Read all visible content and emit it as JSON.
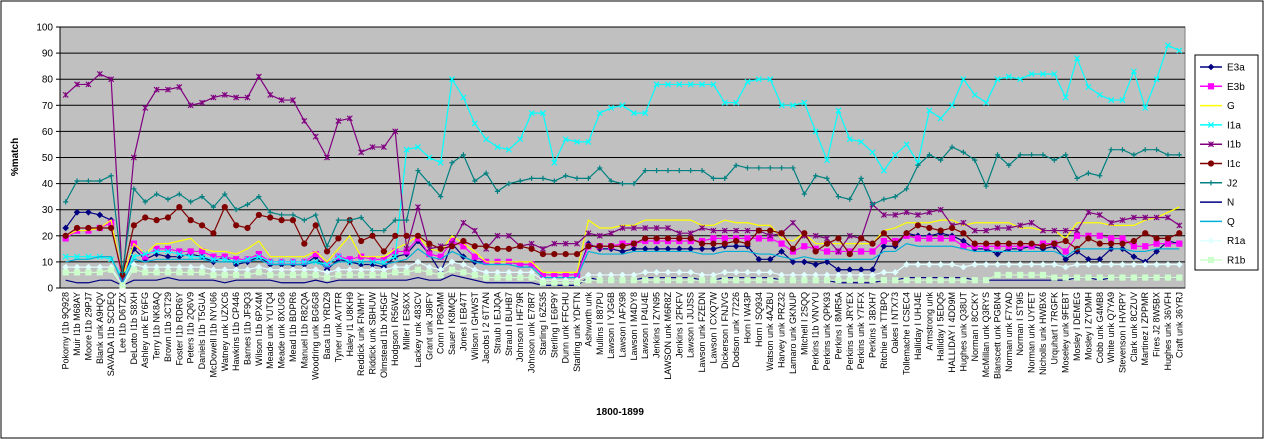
{
  "chart_data": {
    "type": "line",
    "y_label": "%match",
    "x_label": "1800-1899",
    "ylim": [
      0,
      100
    ],
    "yticks": [
      0,
      10,
      20,
      30,
      40,
      50,
      60,
      70,
      80,
      90,
      100
    ],
    "grid": true,
    "legend": "right",
    "categories": [
      "Pokorny I1b 9Q928",
      "Muir I1b M68AY",
      "Moore I1b 29PJ7",
      "Blank unk A9HQV",
      "SAVADA I1b SCDEQ",
      "Lee I1b D6TZX",
      "DeLotto I1b S8XH",
      "Ashley unk EY6FG",
      "Terry I1b NK8AQ",
      "Brown I1b 3CT29",
      "Foster I1b RDR6Y",
      "Peters I1b 2Q6V9",
      "Daniels I1b T5GUA",
      "McDowell I1b NYU66",
      "Watney unk UZXC6",
      "Hawkins I1b CP446",
      "Barnes I1b JF9Q3",
      "Wilson I1b 6PX4M",
      "Meade unk YUTQ4",
      "Meade unk 8XUG6",
      "Mead I1b BDPR6",
      "Manuel I1b R82QA",
      "Woodring unk BG6G8",
      "Baca I1b YRDZ9",
      "Tyner unk AVTFR",
      "Haley I1 U8KH9",
      "Reddick unk FNMHY",
      "Riddick unk SBHUW",
      "Olmstead I1b XH5GF",
      "Hodgson I R56WZ",
      "Miller I ES6XX",
      "Lackey unk 483CV",
      "Grant unk J98FY",
      "Conn I P8GMM",
      "Sauer I K8MQE",
      "Jones I EB47T",
      "Wilson I GHWST",
      "Jacobs I 2 6T7AN",
      "Straub I EJJQA",
      "Straub I BUHB7",
      "Johnson I HF79R",
      "Johnson unk E78R7",
      "Starling I 6Z535",
      "Sterling I E6P9Y",
      "Dunn unk FFCHU",
      "Starling unk YDFTN",
      "Ashworth unk",
      "Mullins I 887PU",
      "Lawson I YJG6B",
      "Lawson I AFX98",
      "Lawson I M4DY8",
      "Lawson I P4U4E",
      "Jenkins I ZYN95",
      "LAWSON unk M6R8Z",
      "Jenkins I 2FKFV",
      "Lawson I JUJSS",
      "Lawson unk FZEDN",
      "Lawson I CXQ7W",
      "Dickerson I FNJVG",
      "Dodson unk 77226",
      "Horn I W43P",
      "Horn I SQ934",
      "Watson unk 4AZBU",
      "Harvey unk PRZ32",
      "Lamaro unk GKNUP",
      "Mitchell I 2SQQ",
      "Perkins I1b VNVYU",
      "Perkins unk QPK93",
      "Perkins I 8MR5A",
      "Perkins unk JRYEX",
      "Perkins unk Y7FFX",
      "Perkins I 3BXH7",
      "Ritchie unk TTBPQ",
      "Oakes I NTX73",
      "Tollemache I CSEC4",
      "Halliday I UHJ4E",
      "Armstrong unk",
      "Halliday I 5EDQ5",
      "HALLIDAY I 4DD9M",
      "Hughes unk Q38UT",
      "Norman I 8CCKY",
      "McMillan unk Q3RYS",
      "Blanscett unk PGBN4",
      "Norman unk F7YAD",
      "Norman I ST9I5",
      "Norman unk UYFET",
      "Nicholls unk HWBX6",
      "Urquhart I 7RGFK",
      "Moseley unk 9FEBT",
      "Mosley I DEMEG",
      "Mosley I ZYDMH",
      "Cobb unk G4MB8",
      "White unk Q7YA9",
      "Stevenson I HVRPY",
      "Clark unk 8CZUV",
      "Martinez I ZPPMR",
      "Fires J2 8W5BX",
      "Hughes unk 36VFH",
      "Craft unk 36YRJ"
    ],
    "series": [
      {
        "name": "E3a",
        "color": "#000080",
        "marker": "diamond",
        "values": [
          23,
          29,
          29,
          28,
          26,
          3,
          15,
          11,
          13,
          12,
          12,
          13,
          12,
          10,
          12,
          9,
          10,
          12,
          9,
          9,
          9,
          9,
          12,
          7,
          11,
          10,
          9,
          9,
          8,
          12,
          13,
          18,
          13,
          6,
          17,
          12,
          10,
          10,
          10,
          10,
          9,
          9,
          5,
          5,
          5,
          5,
          17,
          15,
          15,
          14,
          15,
          15,
          15,
          15,
          15,
          15,
          15,
          15,
          16,
          16,
          16,
          11,
          11,
          14,
          10,
          10,
          9,
          10,
          7,
          7,
          7,
          7,
          16,
          16,
          21,
          20,
          20,
          21,
          20,
          18,
          15,
          15,
          13,
          15,
          15,
          16,
          15,
          16,
          11,
          14,
          11,
          11,
          15,
          15,
          12,
          10,
          14,
          18,
          17
        ]
      },
      {
        "name": "E3b",
        "color": "#ff00ff",
        "marker": "square",
        "values": [
          19,
          22,
          22,
          23,
          25,
          3,
          17,
          12,
          15,
          15,
          14,
          14,
          14,
          12,
          12,
          11,
          11,
          13,
          10,
          10,
          10,
          10,
          13,
          9,
          12,
          11,
          12,
          11,
          11,
          14,
          14,
          19,
          13,
          12,
          18,
          16,
          12,
          10,
          10,
          10,
          9,
          9,
          5,
          5,
          5,
          5,
          16,
          16,
          16,
          17,
          17,
          18,
          18,
          18,
          18,
          18,
          18,
          19,
          19,
          19,
          19,
          19,
          19,
          17,
          14,
          16,
          15,
          14,
          14,
          14,
          14,
          14,
          18,
          18,
          20,
          19,
          19,
          19,
          19,
          16,
          16,
          16,
          16,
          16,
          16,
          16,
          17,
          17,
          14,
          20,
          20,
          20,
          19,
          19,
          16,
          16,
          17,
          17,
          17
        ]
      },
      {
        "name": "G",
        "color": "#ffff00",
        "marker": "none",
        "values": [
          20,
          22,
          22,
          23,
          26,
          4,
          17,
          13,
          17,
          17,
          18,
          19,
          15,
          14,
          14,
          13,
          15,
          18,
          12,
          12,
          12,
          12,
          14,
          10,
          15,
          20,
          12,
          12,
          12,
          15,
          17,
          20,
          15,
          14,
          20,
          17,
          14,
          10,
          10,
          10,
          10,
          10,
          6,
          6,
          6,
          6,
          26,
          23,
          23,
          24,
          24,
          26,
          26,
          26,
          26,
          26,
          24,
          24,
          26,
          25,
          25,
          24,
          24,
          19,
          18,
          21,
          17,
          17,
          17,
          17,
          17,
          17,
          22,
          23,
          25,
          25,
          25,
          26,
          26,
          24,
          25,
          25,
          25,
          25,
          23,
          23,
          22,
          22,
          19,
          25,
          25,
          25,
          24,
          24,
          24,
          26,
          27,
          29,
          31
        ]
      },
      {
        "name": "I1a",
        "color": "#00ffff",
        "marker": "x",
        "values": [
          12,
          12,
          12,
          12,
          11,
          4,
          12,
          13,
          14,
          14,
          13,
          12,
          12,
          11,
          11,
          10,
          11,
          12,
          10,
          10,
          10,
          10,
          10,
          9,
          12,
          10,
          10,
          10,
          10,
          12,
          53,
          54,
          50,
          48,
          80,
          73,
          63,
          57,
          54,
          53,
          57,
          67,
          67,
          48,
          57,
          56,
          56,
          67,
          69,
          70,
          67,
          67,
          78,
          78,
          78,
          78,
          78,
          78,
          71,
          71,
          79,
          80,
          80,
          70,
          70,
          71,
          60,
          49,
          68,
          57,
          56,
          52,
          45,
          51,
          55,
          48,
          68,
          65,
          70,
          80,
          74,
          71,
          80,
          81,
          80,
          82,
          82,
          82,
          73,
          88,
          77,
          74,
          72,
          72,
          83,
          69,
          80,
          93,
          91
        ]
      },
      {
        "name": "I1b",
        "color": "#800080",
        "marker": "star",
        "values": [
          74,
          78,
          78,
          82,
          80,
          3,
          50,
          69,
          76,
          76,
          77,
          70,
          71,
          73,
          74,
          73,
          73,
          81,
          74,
          72,
          72,
          64,
          58,
          50,
          64,
          65,
          52,
          54,
          54,
          60,
          15,
          31,
          15,
          16,
          17,
          25,
          22,
          15,
          20,
          20,
          16,
          17,
          15,
          17,
          17,
          17,
          21,
          20,
          21,
          23,
          23,
          23,
          23,
          23,
          21,
          21,
          23,
          22,
          22,
          22,
          22,
          22,
          20,
          21,
          25,
          20,
          20,
          19,
          14,
          20,
          19,
          32,
          28,
          28,
          29,
          28,
          29,
          30,
          24,
          25,
          22,
          22,
          23,
          23,
          24,
          25,
          22,
          22,
          22,
          22,
          29,
          28,
          25,
          26,
          27,
          27,
          27,
          27,
          24
        ]
      },
      {
        "name": "I1c",
        "color": "#800000",
        "marker": "circle",
        "values": [
          20,
          23,
          23,
          23,
          23,
          5,
          24,
          27,
          26,
          27,
          31,
          26,
          24,
          21,
          31,
          24,
          23,
          28,
          27,
          26,
          26,
          17,
          24,
          14,
          19,
          26,
          18,
          20,
          14,
          20,
          20,
          20,
          17,
          15,
          16,
          18,
          16,
          16,
          15,
          15,
          16,
          15,
          13,
          13,
          13,
          13,
          16,
          16,
          16,
          16,
          17,
          19,
          19,
          19,
          19,
          19,
          17,
          17,
          17,
          18,
          17,
          22,
          22,
          21,
          15,
          21,
          14,
          17,
          19,
          13,
          19,
          17,
          21,
          17,
          21,
          24,
          23,
          22,
          23,
          21,
          17,
          17,
          17,
          17,
          17,
          17,
          16,
          17,
          18,
          15,
          19,
          17,
          17,
          17,
          18,
          21,
          19,
          19,
          21
        ]
      },
      {
        "name": "J2",
        "color": "#008080",
        "marker": "plus",
        "values": [
          33,
          41,
          41,
          41,
          43,
          6,
          38,
          33,
          36,
          34,
          36,
          33,
          35,
          31,
          36,
          30,
          32,
          35,
          29,
          28,
          28,
          26,
          28,
          16,
          26,
          26,
          27,
          22,
          22,
          26,
          26,
          45,
          40,
          35,
          48,
          51,
          41,
          44,
          37,
          40,
          41,
          42,
          42,
          41,
          43,
          42,
          42,
          46,
          41,
          40,
          40,
          45,
          45,
          45,
          45,
          45,
          45,
          42,
          42,
          47,
          46,
          46,
          46,
          46,
          46,
          36,
          43,
          42,
          35,
          34,
          42,
          32,
          34,
          35,
          38,
          47,
          51,
          49,
          54,
          52,
          49,
          39,
          51,
          47,
          51,
          51,
          51,
          49,
          51,
          42,
          44,
          43,
          53,
          53,
          51,
          53,
          53,
          51,
          51
        ]
      },
      {
        "name": "N",
        "color": "#000080",
        "marker": "none",
        "values": [
          3,
          2,
          2,
          3,
          3,
          1,
          3,
          3,
          3,
          4,
          3,
          3,
          3,
          3,
          2,
          3,
          3,
          3,
          3,
          2,
          2,
          2,
          3,
          2,
          3,
          3,
          3,
          3,
          3,
          3,
          3,
          4,
          3,
          3,
          5,
          4,
          3,
          2,
          2,
          2,
          2,
          2,
          1,
          1,
          1,
          1,
          4,
          3,
          3,
          3,
          3,
          4,
          4,
          4,
          4,
          4,
          3,
          3,
          4,
          4,
          4,
          4,
          4,
          3,
          3,
          3,
          3,
          3,
          2,
          2,
          2,
          2,
          3,
          3,
          4,
          4,
          4,
          4,
          4,
          4,
          3,
          3,
          3,
          3,
          3,
          3,
          3,
          3,
          3,
          4,
          4,
          3,
          4,
          4,
          4,
          4,
          4,
          4,
          4
        ]
      },
      {
        "name": "Q",
        "color": "#00b0d8",
        "marker": "none",
        "values": [
          10,
          11,
          11,
          12,
          12,
          2,
          11,
          10,
          11,
          11,
          11,
          11,
          11,
          10,
          10,
          10,
          10,
          11,
          9,
          9,
          9,
          9,
          10,
          8,
          10,
          10,
          10,
          10,
          9,
          10,
          11,
          15,
          12,
          11,
          14,
          12,
          10,
          9,
          9,
          9,
          8,
          8,
          4,
          4,
          4,
          4,
          14,
          13,
          13,
          13,
          14,
          14,
          14,
          14,
          14,
          14,
          13,
          13,
          14,
          14,
          14,
          13,
          13,
          12,
          11,
          12,
          11,
          11,
          11,
          11,
          11,
          11,
          14,
          14,
          17,
          16,
          16,
          16,
          16,
          15,
          14,
          14,
          14,
          14,
          14,
          14,
          14,
          14,
          12,
          15,
          15,
          15,
          15,
          15,
          14,
          14,
          15,
          15,
          15
        ]
      },
      {
        "name": "R1a",
        "color": "#e0ffff",
        "marker": "diamond",
        "values": [
          8,
          8,
          8,
          8,
          8,
          1,
          9,
          8,
          8,
          8,
          8,
          8,
          8,
          7,
          7,
          7,
          7,
          8,
          7,
          7,
          7,
          7,
          7,
          6,
          7,
          7,
          7,
          7,
          7,
          8,
          8,
          10,
          8,
          7,
          10,
          9,
          7,
          6,
          6,
          6,
          6,
          6,
          3,
          3,
          3,
          3,
          5,
          5,
          5,
          5,
          5,
          6,
          6,
          6,
          6,
          6,
          5,
          5,
          6,
          6,
          6,
          6,
          6,
          5,
          5,
          5,
          5,
          5,
          5,
          5,
          5,
          5,
          6,
          6,
          9,
          9,
          9,
          9,
          9,
          8,
          9,
          9,
          9,
          9,
          9,
          9,
          9,
          9,
          8,
          9,
          9,
          9,
          9,
          9,
          9,
          9,
          9,
          9,
          9
        ]
      },
      {
        "name": "R1b",
        "color": "#ccffcc",
        "marker": "square",
        "values": [
          6,
          6,
          6,
          6,
          7,
          1,
          7,
          6,
          6,
          6,
          6,
          6,
          6,
          5,
          5,
          5,
          5,
          6,
          5,
          5,
          5,
          5,
          5,
          4,
          5,
          5,
          5,
          5,
          5,
          6,
          6,
          7,
          6,
          5,
          7,
          6,
          5,
          4,
          4,
          4,
          4,
          4,
          2,
          2,
          2,
          2,
          3,
          3,
          3,
          3,
          3,
          3,
          3,
          3,
          3,
          3,
          3,
          3,
          3,
          3,
          3,
          3,
          3,
          3,
          3,
          3,
          3,
          3,
          3,
          3,
          3,
          3,
          3,
          3,
          3,
          3,
          3,
          3,
          3,
          3,
          3,
          3,
          5,
          5,
          5,
          5,
          5,
          4,
          4,
          4,
          4,
          4,
          4,
          4,
          4,
          4,
          4,
          4,
          4
        ]
      }
    ]
  }
}
